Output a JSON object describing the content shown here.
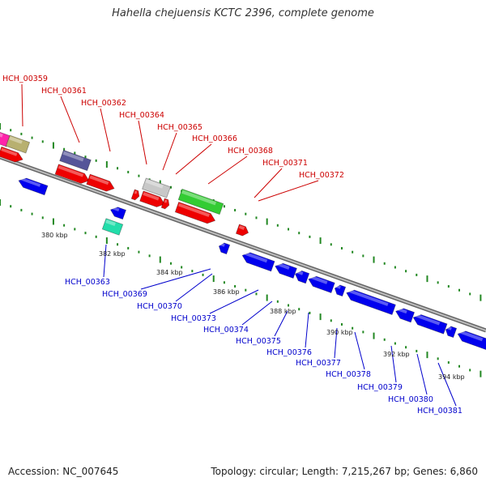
{
  "title": "Hahella chejuensis KCTC 2396, complete genome",
  "accession": "Accession: NC_007645",
  "summary": "Topology: circular; Length: 7,215,267 bp; Genes: 6,860",
  "colors": {
    "forward_label": "#cc0000",
    "reverse_label": "#0000cc",
    "forward_gene": "#ee0000",
    "reverse_gene": "#0000ee",
    "backbone": "#888888",
    "dots": "#228822"
  },
  "forward_labels": [
    "HCH_00359",
    "HCH_00361",
    "HCH_00362",
    "HCH_00364",
    "HCH_00365",
    "HCH_00366",
    "HCH_00368",
    "HCH_00371",
    "HCH_00372"
  ],
  "reverse_labels": [
    "HCH_00363",
    "HCH_00369",
    "HCH_00370",
    "HCH_00373",
    "HCH_00374",
    "HCH_00375",
    "HCH_00376",
    "HCH_00377",
    "HCH_00378",
    "HCH_00379",
    "HCH_00380",
    "HCH_00381"
  ],
  "ticks": [
    "380 kbp",
    "382 kbp",
    "384 kbp",
    "386 kbp",
    "388 kbp",
    "390 kbp",
    "392 kbp",
    "394 kbp"
  ]
}
